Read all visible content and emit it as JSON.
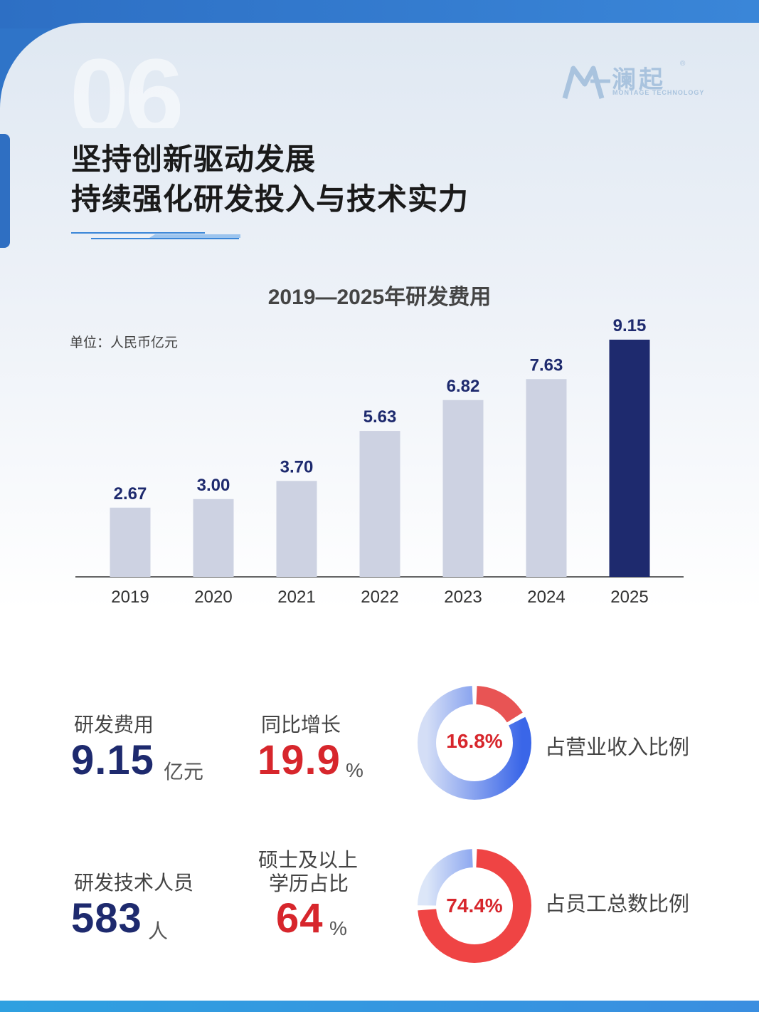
{
  "header": {
    "section_number": "06",
    "title_line1": "坚持创新驱动发展",
    "title_line2": "持续强化研发投入与技术实力"
  },
  "logo": {
    "name": "澜起",
    "subtitle": "MONTAGE TECHNOLOGY",
    "registered": "®"
  },
  "chart_data": {
    "type": "bar",
    "title": "2019—2025年研发费用",
    "unit_label": "单位：人民币亿元",
    "categories": [
      "2019",
      "2020",
      "2021",
      "2022",
      "2023",
      "2024",
      "2025"
    ],
    "values": [
      2.67,
      3.0,
      3.7,
      5.63,
      6.82,
      7.63,
      9.15
    ],
    "value_labels": [
      "2.67",
      "3.00",
      "3.70",
      "5.63",
      "6.82",
      "7.63",
      "9.15"
    ],
    "highlight_index": 6,
    "ylim": [
      0,
      11
    ],
    "xlabel": "",
    "ylabel": "",
    "colors": {
      "bar": "#cdd2e2",
      "highlight": "#1e2a6e",
      "label": "#1e2a6e",
      "tick": "#333333"
    }
  },
  "stats": {
    "rd_expense": {
      "label": "研发费用",
      "value": "9.15",
      "unit": "亿元"
    },
    "yoy_growth": {
      "label": "同比增长",
      "value": "19.9",
      "unit": "%"
    },
    "revenue_ratio": {
      "percent_text": "16.8%",
      "percent": 16.8,
      "caption": "占营业收入比例"
    },
    "rd_staff": {
      "label": "研发技术人员",
      "value": "583",
      "unit": "人"
    },
    "masters_ratio": {
      "label_line1": "硕士及以上",
      "label_line2": "学历占比",
      "value": "64",
      "unit": "%"
    },
    "staff_ratio": {
      "percent_text": "74.4%",
      "percent": 74.4,
      "caption": "占员工总数比例"
    }
  },
  "colors": {
    "navy": "#1e2a6e",
    "red": "#d7262c",
    "ring_blue": "#3a66e8",
    "ring_blue_light": "#d4def6",
    "ring_red": "#ef3b3b",
    "ring_red_light": "#f2a2a2"
  }
}
